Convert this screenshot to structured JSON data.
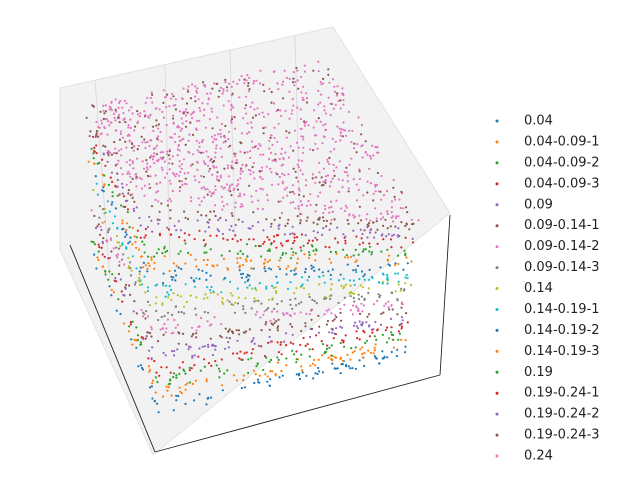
{
  "chart_data": {
    "type": "scatter3d",
    "series": [
      {
        "name": "0.04",
        "color": "#1f77b4"
      },
      {
        "name": "0.04-0.09-1",
        "color": "#ff7f0e"
      },
      {
        "name": "0.04-0.09-2",
        "color": "#2ca02c"
      },
      {
        "name": "0.04-0.09-3",
        "color": "#d62728"
      },
      {
        "name": "0.09",
        "color": "#9467bd"
      },
      {
        "name": "0.09-0.14-1",
        "color": "#8c564b"
      },
      {
        "name": "0.09-0.14-2",
        "color": "#e377c2"
      },
      {
        "name": "0.09-0.14-3",
        "color": "#7f7f7f"
      },
      {
        "name": "0.14",
        "color": "#bcbd22"
      },
      {
        "name": "0.14-0.19-1",
        "color": "#17becf"
      },
      {
        "name": "0.14-0.19-2",
        "color": "#1f77b4"
      },
      {
        "name": "0.14-0.19-3",
        "color": "#ff7f0e"
      },
      {
        "name": "0.19",
        "color": "#2ca02c"
      },
      {
        "name": "0.19-0.24-1",
        "color": "#d62728"
      },
      {
        "name": "0.19-0.24-2",
        "color": "#9467bd"
      },
      {
        "name": "0.19-0.24-3",
        "color": "#8c564b"
      },
      {
        "name": "0.24",
        "color": "#e377c2"
      }
    ]
  }
}
